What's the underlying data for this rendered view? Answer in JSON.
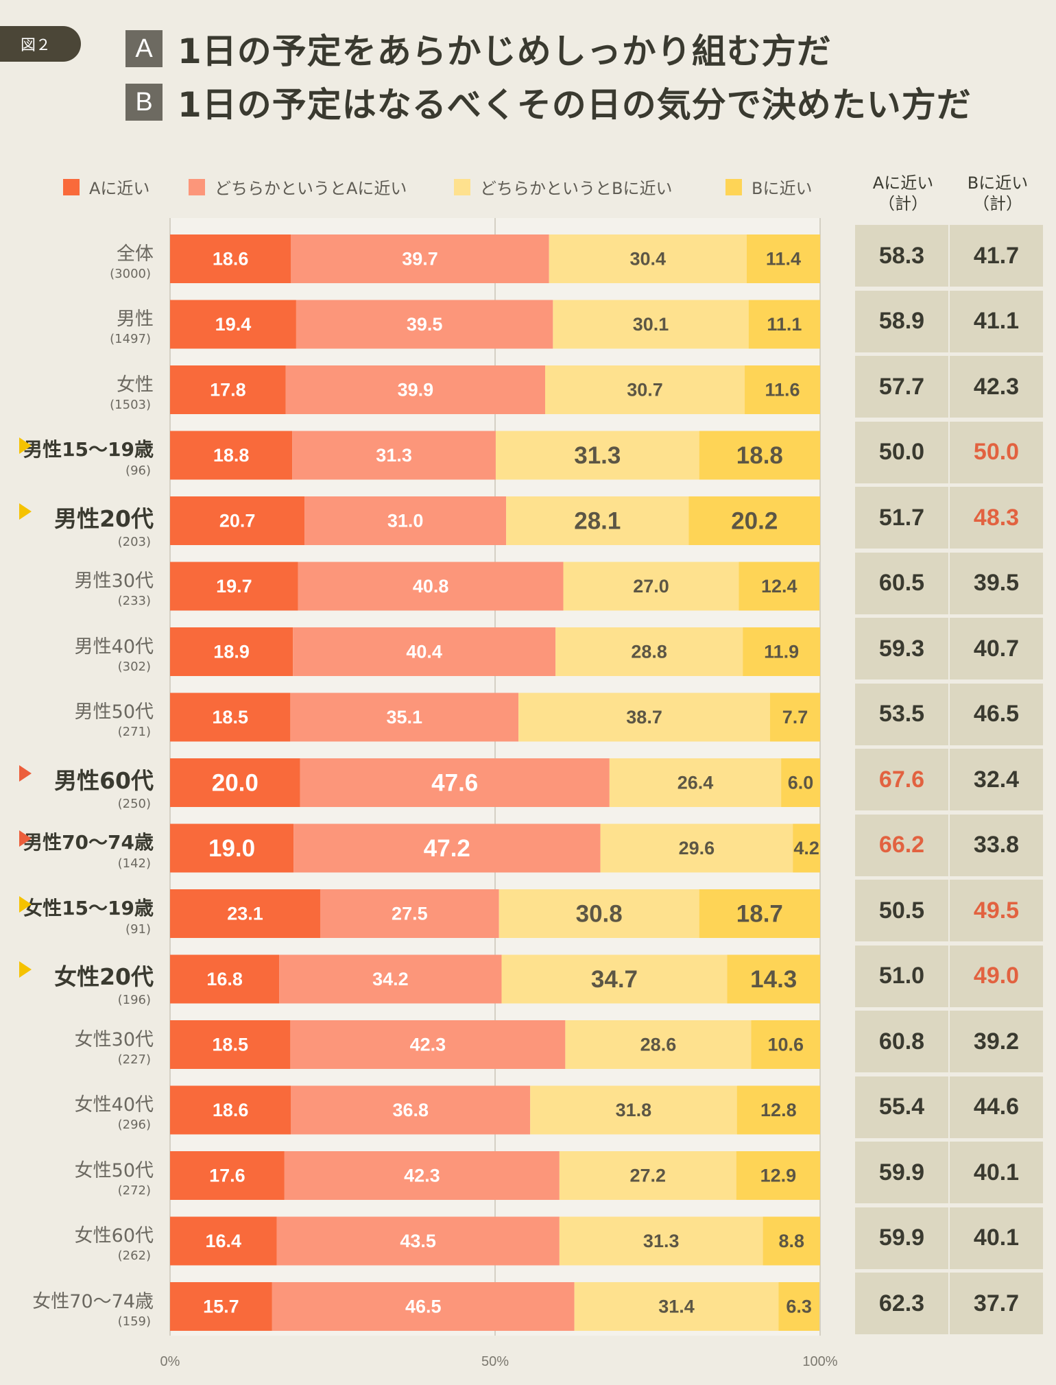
{
  "figure_label": "図２",
  "questions": [
    {
      "letter": "A",
      "text": "1日の予定をあらかじめしっかり組む方だ"
    },
    {
      "letter": "B",
      "text": "1日の予定はなるべくその日の気分で決めたい方だ"
    }
  ],
  "column_headers": [
    {
      "line1": "Aに近い",
      "line2": "（計）"
    },
    {
      "line1": "Bに近い",
      "line2": "（計）"
    }
  ],
  "colors": {
    "a_close": "#f96a3b",
    "somewhat_a": "#fc967a",
    "somewhat_b": "#fee18e",
    "b_close": "#fed456",
    "highlight_red": "#e26240",
    "arrow_yellow": "#f5c200",
    "arrow_red": "#ec5e3b"
  },
  "chart_data": {
    "type": "bar",
    "orientation": "horizontal",
    "stacked": true,
    "xlim": [
      0,
      100
    ],
    "x_ticks": [
      "0%",
      "50%",
      "100%"
    ],
    "legend_position": "top",
    "grid": true,
    "categories": [
      {
        "name": "全体",
        "n": "(3000)",
        "highlight": false,
        "arrow": null
      },
      {
        "name": "男性",
        "n": "(1497)",
        "highlight": false,
        "arrow": null
      },
      {
        "name": "女性",
        "n": "(1503)",
        "highlight": false,
        "arrow": null
      },
      {
        "name": "男性15〜19歳",
        "n": "(96)",
        "highlight": true,
        "arrow": "yellow"
      },
      {
        "name": "男性20代",
        "n": "(203)",
        "highlight": true,
        "arrow": "yellow"
      },
      {
        "name": "男性30代",
        "n": "(233)",
        "highlight": false,
        "arrow": null
      },
      {
        "name": "男性40代",
        "n": "(302)",
        "highlight": false,
        "arrow": null
      },
      {
        "name": "男性50代",
        "n": "(271)",
        "highlight": false,
        "arrow": null
      },
      {
        "name": "男性60代",
        "n": "(250)",
        "highlight": true,
        "arrow": "red"
      },
      {
        "name": "男性70〜74歳",
        "n": "(142)",
        "highlight": true,
        "arrow": "red"
      },
      {
        "name": "女性15〜19歳",
        "n": "(91)",
        "highlight": true,
        "arrow": "yellow"
      },
      {
        "name": "女性20代",
        "n": "(196)",
        "highlight": true,
        "arrow": "yellow"
      },
      {
        "name": "女性30代",
        "n": "(227)",
        "highlight": false,
        "arrow": null
      },
      {
        "name": "女性40代",
        "n": "(296)",
        "highlight": false,
        "arrow": null
      },
      {
        "name": "女性50代",
        "n": "(272)",
        "highlight": false,
        "arrow": null
      },
      {
        "name": "女性60代",
        "n": "(262)",
        "highlight": false,
        "arrow": null
      },
      {
        "name": "女性70〜74歳",
        "n": "(159)",
        "highlight": false,
        "arrow": null
      }
    ],
    "series": [
      {
        "name": "Aに近い",
        "color": "#f96a3b",
        "values": [
          18.6,
          19.4,
          17.8,
          18.8,
          20.7,
          19.7,
          18.9,
          18.5,
          20.0,
          19.0,
          23.1,
          16.8,
          18.5,
          18.6,
          17.6,
          16.4,
          15.7
        ],
        "labels": [
          "18.6",
          "19.4",
          "17.8",
          "18.8",
          "20.7",
          "19.7",
          "18.9",
          "18.5",
          "20.0",
          "19.0",
          "23.1",
          "16.8",
          "18.5",
          "18.6",
          "17.6",
          "16.4",
          "15.7"
        ],
        "large": [
          false,
          false,
          false,
          false,
          false,
          false,
          false,
          false,
          true,
          true,
          false,
          false,
          false,
          false,
          false,
          false,
          false
        ]
      },
      {
        "name": "どちらかというとAに近い",
        "color": "#fc967a",
        "values": [
          39.7,
          39.5,
          39.9,
          31.3,
          31.0,
          40.8,
          40.4,
          35.1,
          47.6,
          47.2,
          27.5,
          34.2,
          42.3,
          36.8,
          42.3,
          43.5,
          46.5
        ],
        "labels": [
          "39.7",
          "39.5",
          "39.9",
          "31.3",
          "31.0",
          "40.8",
          "40.4",
          "35.1",
          "47.6",
          "47.2",
          "27.5",
          "34.2",
          "42.3",
          "36.8",
          "42.3",
          "43.5",
          "46.5"
        ],
        "large": [
          false,
          false,
          false,
          false,
          false,
          false,
          false,
          false,
          true,
          true,
          false,
          false,
          false,
          false,
          false,
          false,
          false
        ]
      },
      {
        "name": "どちらかというとBに近い",
        "color": "#fee18e",
        "values": [
          30.4,
          30.1,
          30.7,
          31.3,
          28.1,
          27.0,
          28.8,
          38.7,
          26.4,
          29.6,
          30.8,
          34.7,
          28.6,
          31.8,
          27.2,
          31.3,
          31.4
        ],
        "labels": [
          "30.4",
          "30.1",
          "30.7",
          "31.3",
          "28.1",
          "27.0",
          "28.8",
          "38.7",
          "26.4",
          "29.6",
          "30.8",
          "34.7",
          "28.6",
          "31.8",
          "27.2",
          "31.3",
          "31.4"
        ],
        "large": [
          false,
          false,
          false,
          true,
          true,
          false,
          false,
          false,
          false,
          false,
          true,
          true,
          false,
          false,
          false,
          false,
          false
        ]
      },
      {
        "name": "Bに近い",
        "color": "#fed456",
        "values": [
          11.4,
          11.1,
          11.6,
          18.8,
          20.2,
          12.4,
          11.9,
          7.7,
          6.0,
          4.2,
          18.7,
          14.3,
          10.6,
          12.8,
          12.9,
          8.8,
          6.3
        ],
        "labels": [
          "11.4",
          "11.1",
          "11.6",
          "18.8",
          "20.2",
          "12.4",
          "11.9",
          "7.7",
          "6.0",
          "4.2",
          "18.7",
          "14.3",
          "10.6",
          "12.8",
          "12.9",
          "8.8",
          "6.3"
        ],
        "large": [
          false,
          false,
          false,
          true,
          true,
          false,
          false,
          false,
          false,
          false,
          true,
          true,
          false,
          false,
          false,
          false,
          false
        ]
      }
    ],
    "totals": {
      "a": [
        "58.3",
        "58.9",
        "57.7",
        "50.0",
        "51.7",
        "60.5",
        "59.3",
        "53.5",
        "67.6",
        "66.2",
        "50.5",
        "51.0",
        "60.8",
        "55.4",
        "59.9",
        "59.9",
        "62.3"
      ],
      "b": [
        "41.7",
        "41.1",
        "42.3",
        "50.0",
        "48.3",
        "39.5",
        "40.7",
        "46.5",
        "32.4",
        "33.8",
        "49.5",
        "49.0",
        "39.2",
        "44.6",
        "40.1",
        "40.1",
        "37.7"
      ],
      "a_highlight": [
        false,
        false,
        false,
        false,
        false,
        false,
        false,
        false,
        true,
        true,
        false,
        false,
        false,
        false,
        false,
        false,
        false
      ],
      "b_highlight": [
        false,
        false,
        false,
        true,
        true,
        false,
        false,
        false,
        false,
        false,
        true,
        true,
        false,
        false,
        false,
        false,
        false
      ]
    }
  }
}
